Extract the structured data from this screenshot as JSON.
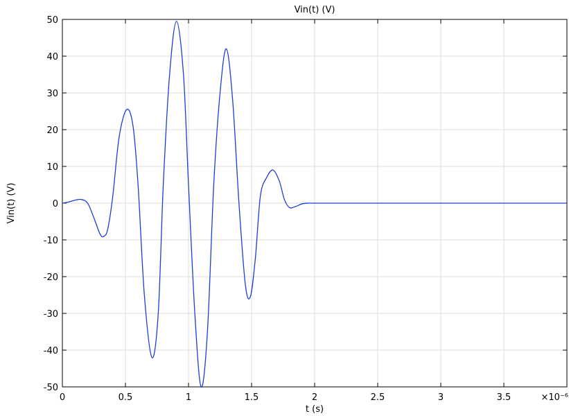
{
  "chart_data": {
    "type": "line",
    "title": "Vin(t) (V)",
    "xlabel": "t (s)",
    "ylabel": "Vin(t) (V)",
    "x_multiplier_label": "×10⁻⁶",
    "xlim": [
      0,
      4
    ],
    "ylim": [
      -50,
      50
    ],
    "xticks": [
      0,
      0.5,
      1,
      1.5,
      2,
      2.5,
      3,
      3.5
    ],
    "xtick_labels": [
      "0",
      "0.5",
      "1",
      "1.5",
      "2",
      "2.5",
      "3",
      "3.5"
    ],
    "yticks": [
      50,
      40,
      30,
      20,
      10,
      0,
      -10,
      -20,
      -30,
      -40,
      -50
    ],
    "ytick_labels": [
      "50",
      "40",
      "30",
      "20",
      "10",
      "0",
      "-10",
      "-20",
      "-30",
      "-40",
      "-50"
    ],
    "grid": true,
    "line_color": "#1a3fd6",
    "series": [
      {
        "x": [
          0,
          0.05,
          0.1,
          0.15,
          0.2,
          0.25,
          0.3,
          0.33,
          0.36,
          0.4,
          0.45,
          0.51,
          0.56,
          0.6,
          0.65,
          0.71,
          0.76,
          0.8,
          0.85,
          0.905,
          0.96,
          1.0,
          1.05,
          1.1,
          1.15,
          1.2,
          1.25,
          1.3,
          1.35,
          1.4,
          1.45,
          1.49,
          1.53,
          1.57,
          1.62,
          1.67,
          1.72,
          1.76,
          1.8,
          1.85,
          1.9,
          1.95,
          2.0,
          2.5,
          3.0,
          3.5,
          4.0
        ],
        "y": [
          0,
          0.3,
          0.8,
          1,
          0,
          -4,
          -8.5,
          -9,
          -7,
          2,
          18,
          25.5,
          21,
          5,
          -25,
          -42,
          -30,
          5,
          35,
          49.5,
          35,
          5,
          -30,
          -50,
          -35,
          5,
          30,
          42,
          28,
          0,
          -22,
          -25.5,
          -15,
          2,
          7,
          9,
          6,
          1,
          -1.2,
          -0.9,
          -0.2,
          0,
          0,
          0,
          0,
          0,
          0
        ]
      }
    ]
  }
}
